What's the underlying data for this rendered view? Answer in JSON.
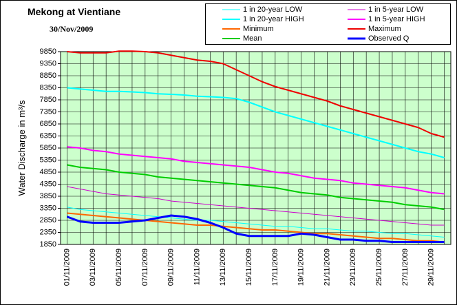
{
  "chart_data": {
    "type": "line",
    "title": "Mekong at Vientiane",
    "subtitle": "30/Nov/2009",
    "y_label": "Water Discharge in m³/s",
    "categories": [
      "01/11/2009",
      null,
      "03/11/2009",
      null,
      "05/11/2009",
      null,
      "07/11/2009",
      null,
      "09/11/2009",
      null,
      "11/11/2009",
      null,
      "13/11/2009",
      null,
      "15/11/2009",
      null,
      "17/11/2009",
      null,
      "19/11/2009",
      null,
      "21/11/2009",
      null,
      "23/11/2009",
      null,
      "25/11/2009",
      null,
      "27/11/2009",
      null,
      "29/11/2009",
      null
    ],
    "ylim": [
      1850,
      9850
    ],
    "yticks": [
      1850,
      2350,
      2850,
      3350,
      3850,
      4350,
      4850,
      5350,
      5850,
      6350,
      6850,
      7350,
      7850,
      8350,
      8850,
      9350,
      9850
    ],
    "grid": true,
    "background": "#ccffcc",
    "series": [
      {
        "name": "1 in 20-year LOW",
        "color": "#00ffff",
        "width": 1,
        "values": [
          3400,
          3300,
          3250,
          3200,
          3150,
          3100,
          3050,
          3000,
          2950,
          2900,
          2850,
          2850,
          2800,
          2750,
          2700,
          2650,
          2600,
          2600,
          2550,
          2500,
          2500,
          2450,
          2400,
          2400,
          2350,
          2300,
          2300,
          2250,
          2200,
          2150
        ]
      },
      {
        "name": "1 in 5-year LOW",
        "color": "#cc00cc",
        "width": 1,
        "values": [
          4250,
          4150,
          4050,
          3950,
          3900,
          3850,
          3800,
          3750,
          3650,
          3600,
          3550,
          3500,
          3450,
          3400,
          3350,
          3300,
          3250,
          3200,
          3150,
          3100,
          3050,
          3000,
          2950,
          2900,
          2850,
          2800,
          2750,
          2700,
          2650,
          2650
        ]
      },
      {
        "name": "1 in 20-year HIGH",
        "color": "#00ffff",
        "width": 2,
        "values": [
          8350,
          8300,
          8250,
          8200,
          8200,
          8180,
          8150,
          8100,
          8080,
          8050,
          8000,
          7980,
          7950,
          7900,
          7750,
          7550,
          7350,
          7200,
          7050,
          6900,
          6750,
          6600,
          6450,
          6300,
          6150,
          6000,
          5850,
          5700,
          5600,
          5450
        ]
      },
      {
        "name": "1 in 5-year HIGH",
        "color": "#ff00ff",
        "width": 2,
        "values": [
          5900,
          5850,
          5750,
          5700,
          5600,
          5550,
          5500,
          5450,
          5400,
          5300,
          5250,
          5200,
          5150,
          5100,
          5050,
          4950,
          4850,
          4800,
          4700,
          4600,
          4550,
          4500,
          4400,
          4350,
          4300,
          4250,
          4200,
          4100,
          4000,
          3950
        ]
      },
      {
        "name": "Minimum",
        "color": "#ff6600",
        "width": 2,
        "values": [
          3150,
          3100,
          3050,
          3000,
          2950,
          2900,
          2850,
          2800,
          2750,
          2700,
          2650,
          2650,
          2600,
          2550,
          2500,
          2450,
          2450,
          2400,
          2350,
          2300,
          2300,
          2250,
          2200,
          2150,
          2100,
          2100,
          2050,
          2000,
          2000,
          1950
        ]
      },
      {
        "name": "Maximum",
        "color": "#ee0000",
        "width": 2,
        "values": [
          9850,
          9800,
          9800,
          9800,
          9870,
          9870,
          9850,
          9800,
          9700,
          9600,
          9500,
          9450,
          9350,
          9100,
          8850,
          8600,
          8400,
          8250,
          8100,
          7950,
          7800,
          7600,
          7450,
          7300,
          7150,
          7000,
          6850,
          6700,
          6450,
          6300
        ]
      },
      {
        "name": "Mean",
        "color": "#00cc00",
        "width": 2,
        "values": [
          5150,
          5050,
          5000,
          4950,
          4850,
          4800,
          4750,
          4650,
          4600,
          4550,
          4500,
          4450,
          4400,
          4350,
          4300,
          4250,
          4200,
          4100,
          4000,
          3950,
          3900,
          3800,
          3750,
          3700,
          3650,
          3600,
          3500,
          3450,
          3400,
          3300
        ]
      },
      {
        "name": "Observed Q",
        "color": "#0000ff",
        "width": 3,
        "values": [
          3000,
          2800,
          2750,
          2750,
          2750,
          2800,
          2850,
          2950,
          3050,
          3000,
          2900,
          2750,
          2550,
          2300,
          2200,
          2200,
          2200,
          2200,
          2300,
          2250,
          2150,
          2050,
          2050,
          2000,
          2000,
          1950,
          1950,
          1950,
          1950,
          1950
        ]
      }
    ]
  }
}
